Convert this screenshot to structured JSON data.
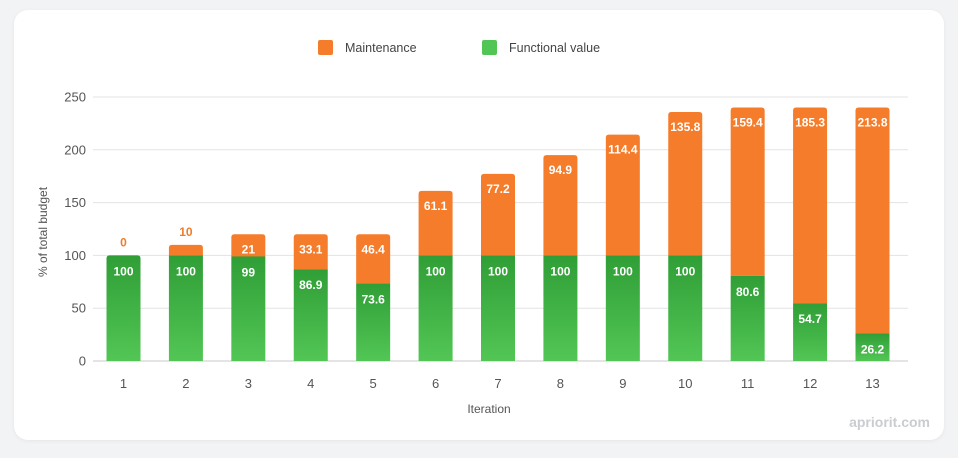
{
  "chart_data": {
    "type": "bar",
    "stacked": true,
    "title": "",
    "xlabel": "Iteration",
    "ylabel": "% of total budget",
    "ylim": [
      0,
      250
    ],
    "yticks": [
      0,
      50,
      100,
      150,
      200,
      250
    ],
    "grid": true,
    "legend_position": "top-center",
    "categories": [
      "1",
      "2",
      "3",
      "4",
      "5",
      "6",
      "7",
      "8",
      "9",
      "10",
      "11",
      "12",
      "13"
    ],
    "series": [
      {
        "name": "Functional value",
        "color": "#2f9e36",
        "color_light": "#52c655",
        "values": [
          100,
          100,
          99,
          86.9,
          73.6,
          100,
          100,
          100,
          100,
          100,
          80.6,
          54.7,
          26.2
        ]
      },
      {
        "name": "Maintenance",
        "color": "#f57c2a",
        "values": [
          0,
          10,
          21,
          33.1,
          46.4,
          61.1,
          77.2,
          94.9,
          114.4,
          135.8,
          159.4,
          185.3,
          213.8
        ]
      }
    ],
    "legend_order": [
      1,
      0
    ]
  },
  "watermark": "apriorit.com"
}
